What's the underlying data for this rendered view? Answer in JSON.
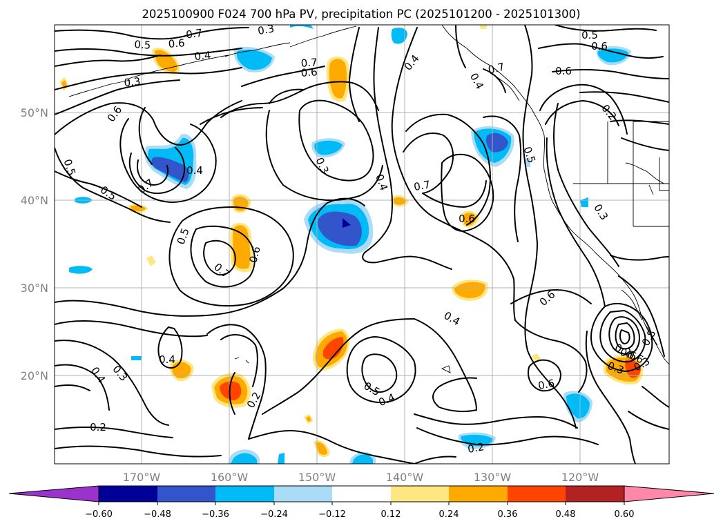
{
  "title": "2025100900 F024 700 hPa PV, precipitation PC (2025101200 - 2025101300)",
  "latitude_labels": [
    "50°N",
    "40°N",
    "30°N",
    "20°N"
  ],
  "longitude_labels": [
    "170°W",
    "160°W",
    "150°W",
    "140°W",
    "130°W",
    "120°W"
  ],
  "colorbar": {
    "ticks": [
      "−0.60",
      "−0.48",
      "−0.36",
      "−0.24",
      "−0.12",
      "0.12",
      "0.24",
      "0.36",
      "0.48",
      "0.60"
    ],
    "colors": [
      "#9933cc",
      "#000099",
      "#3355cc",
      "#00bbf5",
      "#aadcf7",
      "#ffffff",
      "#ffe680",
      "#ffaa00",
      "#ff4400",
      "#b22222",
      "#ff88aa"
    ]
  },
  "contour_labels": [
    "0.7",
    "0.3",
    "0.5",
    "0.6",
    "0.4",
    "0.7",
    "0.6",
    "0.3",
    "0.6",
    "0.5",
    "0.7",
    "0.4",
    "0.5",
    "0.3",
    "0.4",
    "0.7",
    "0.6",
    "0.5",
    "0.6",
    "0.7",
    "0.4",
    "0.6",
    "0.4",
    "0.5",
    "0.4",
    "0.3",
    "0.2",
    "0.4",
    "0.2",
    "0.2",
    "0.6",
    "0.3",
    "0.4",
    "0.5",
    "0.5",
    "0.6",
    "0.6",
    "0.4",
    "0.6",
    "0.7",
    "0.2",
    "0.3",
    "0.6",
    "0.2",
    "0.3",
    "0.8"
  ]
}
